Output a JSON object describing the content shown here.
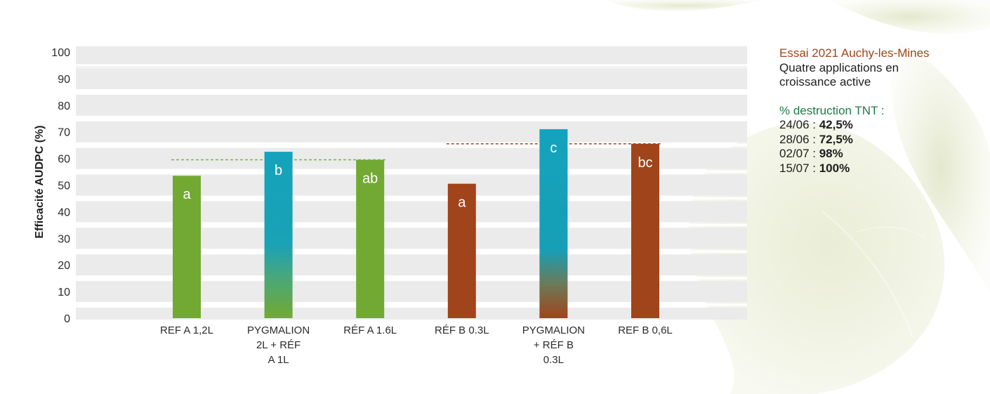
{
  "info": {
    "trial_title": "Essai 2021 Auchy-les-Mines",
    "trial_desc_line1": "Quatre applications en",
    "trial_desc_line2": "croissance active",
    "destruction_title": "% destruction TNT :",
    "destruction": [
      {
        "date": "24/06",
        "sep": " : ",
        "value": "42,5%"
      },
      {
        "date": "28/06",
        "sep": " : ",
        "value": "72,5%"
      },
      {
        "date": "02/07",
        "sep": " : ",
        "value": "98%"
      },
      {
        "date": "15/07",
        "sep": " : ",
        "value": "100%"
      }
    ]
  },
  "chart_data": {
    "type": "bar",
    "ylabel": "Efficacité AUDPC (%)",
    "xlabel": "",
    "ylim": [
      0,
      100
    ],
    "yticks": [
      0,
      10,
      20,
      30,
      40,
      50,
      60,
      70,
      80,
      90,
      100
    ],
    "grid": true,
    "categories": [
      [
        "REF A 1,2L"
      ],
      [
        "PYGMALION",
        "2L + RÉF",
        "A 1L"
      ],
      [
        "RÉF A 1.6L"
      ],
      [
        "RÉF B 0.3L"
      ],
      [
        "PYGMALION",
        "+ RÉF B",
        "0.3L"
      ],
      [
        "REF B 0,6L"
      ]
    ],
    "values": [
      53.5,
      62.5,
      59.5,
      50.5,
      71,
      65.5
    ],
    "labels": [
      "a",
      "b",
      "ab",
      "a",
      "c",
      "bc"
    ],
    "bar_styles": [
      "green",
      "blue-green",
      "green",
      "brown",
      "blue-brown",
      "brown"
    ],
    "reference_lines": [
      {
        "value": 59.5,
        "from": 0,
        "to": 2,
        "color": "#7ab342"
      },
      {
        "value": 65.5,
        "from": 3,
        "to": 5,
        "color": "#a0441c"
      }
    ],
    "colors": {
      "green": "#72a932",
      "blue": "#14a3bc",
      "brown": "#a0441c",
      "grid_bg": "#ebebeb",
      "gridline": "#ffffff",
      "axis_text": "#2b2b2b"
    }
  }
}
